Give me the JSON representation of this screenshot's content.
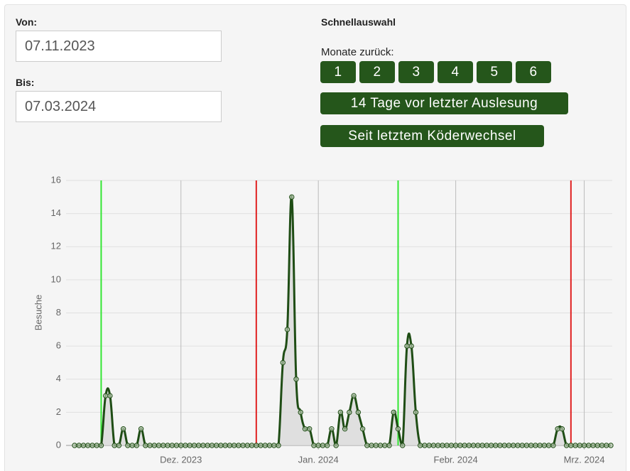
{
  "form": {
    "from_label": "Von:",
    "from_value": "07.11.2023",
    "to_label": "Bis:",
    "to_value": "07.03.2024"
  },
  "quick": {
    "title": "Schnellauswahl",
    "months_label": "Monate zurück:",
    "months": [
      "1",
      "2",
      "3",
      "4",
      "5",
      "6"
    ],
    "buttons": [
      "14 Tage vor letzter Auslesung",
      "Seit letztem Köderwechsel"
    ]
  },
  "chart_data": {
    "type": "line",
    "y_label": "Besuche",
    "color": "#1f4d15",
    "fill": "#d9d9d9",
    "grid": true,
    "values": [
      0,
      0,
      0,
      0,
      0,
      0,
      0,
      3,
      3,
      0,
      0,
      1,
      0,
      0,
      0,
      1,
      0,
      0,
      0,
      0,
      0,
      0,
      0,
      0,
      0,
      0,
      0,
      0,
      0,
      0,
      0,
      0,
      0,
      0,
      0,
      0,
      0,
      0,
      0,
      0,
      0,
      0,
      0,
      0,
      0,
      0,
      0,
      5,
      7,
      15,
      4,
      2,
      1,
      1,
      0,
      0,
      0,
      0,
      1,
      0,
      2,
      1,
      2,
      3,
      2,
      1,
      0,
      0,
      0,
      0,
      0,
      0,
      2,
      1,
      0,
      6,
      6,
      2,
      0,
      0,
      0,
      0,
      0,
      0,
      0,
      0,
      0,
      0,
      0,
      0,
      0,
      0,
      0,
      0,
      0,
      0,
      0,
      0,
      0,
      0,
      0,
      0,
      0,
      0,
      0,
      0,
      0,
      0,
      0,
      1,
      1,
      0,
      0,
      0,
      0,
      0,
      0,
      0,
      0,
      0,
      0,
      0
    ],
    "xlim": [
      0,
      121
    ],
    "xticks": [
      {
        "value": 24,
        "label": "Dez. 2023"
      },
      {
        "value": 55,
        "label": "Jan. 2024"
      },
      {
        "value": 86,
        "label": "Febr. 2024"
      },
      {
        "value": 115,
        "label": "Mrz. 2024"
      }
    ],
    "ylim": [
      0,
      16
    ],
    "yticks": [
      0,
      2,
      4,
      6,
      8,
      10,
      12,
      14,
      16
    ],
    "markers": [
      {
        "x": 6,
        "color": "#33e633"
      },
      {
        "x": 41,
        "color": "#e02020"
      },
      {
        "x": 73,
        "color": "#33e633"
      },
      {
        "x": 112,
        "color": "#e02020"
      }
    ]
  }
}
